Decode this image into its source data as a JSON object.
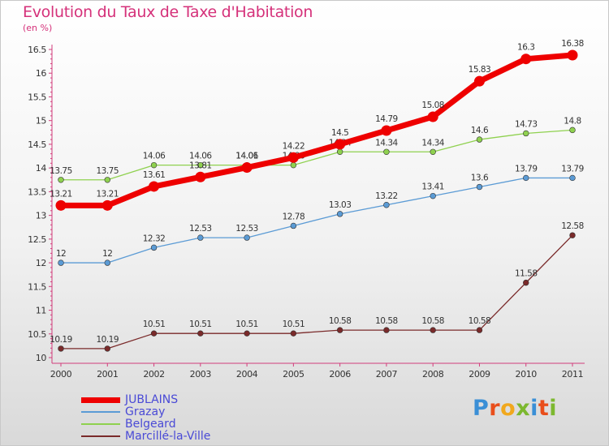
{
  "header": {
    "title": "Evolution du Taux de Taxe d'Habitation",
    "unit": "(en %)"
  },
  "logo": {
    "text": "Proxiti",
    "colors": [
      "#3a8fd6",
      "#e94e1b",
      "#f1a81d",
      "#7cb82f",
      "#3a8fd6",
      "#e94e1b",
      "#7cb82f"
    ]
  },
  "chart_data": {
    "type": "line",
    "x": [
      "2000",
      "2001",
      "2002",
      "2003",
      "2004",
      "2005",
      "2006",
      "2007",
      "2008",
      "2009",
      "2010",
      "2011"
    ],
    "ylim": [
      10,
      16.5
    ],
    "yticks": [
      "10",
      "10.5",
      "11",
      "11.5",
      "12",
      "12.5",
      "13",
      "13.5",
      "14",
      "14.5",
      "15",
      "15.5",
      "16",
      "16.5"
    ],
    "grid": false,
    "legend_position": "bottom-left",
    "series": [
      {
        "name": "Marcillé-la-Ville",
        "color": "#7a2a2a",
        "width": 1.3,
        "marker": 3.4,
        "values": [
          10.19,
          10.19,
          10.51,
          10.51,
          10.51,
          10.51,
          10.58,
          10.58,
          10.58,
          10.58,
          11.58,
          12.58
        ],
        "labels": [
          "10.19",
          "10.19",
          "10.51",
          "10.51",
          "10.51",
          "10.51",
          "10.58",
          "10.58",
          "10.58",
          "10.58",
          "11.58",
          "12.58"
        ]
      },
      {
        "name": "Grazay",
        "color": "#5b9bd5",
        "width": 1.3,
        "marker": 3.4,
        "values": [
          12,
          12,
          12.32,
          12.53,
          12.53,
          12.78,
          13.03,
          13.22,
          13.41,
          13.6,
          13.79,
          13.79
        ],
        "labels": [
          "12",
          "12",
          "12.32",
          "12.53",
          "12.53",
          "12.78",
          "13.03",
          "13.22",
          "13.41",
          "13.6",
          "13.79",
          "13.79"
        ]
      },
      {
        "name": "Belgeard",
        "color": "#8fd14f",
        "width": 1.3,
        "marker": 3.4,
        "values": [
          13.75,
          13.75,
          14.06,
          14.06,
          14.06,
          14.06,
          14.34,
          14.34,
          14.34,
          14.6,
          14.73,
          14.8
        ],
        "labels": [
          "13.75",
          "13.75",
          "14.06",
          "14.06",
          "14.06",
          "14.06",
          "14.34",
          "14.34",
          "14.34",
          "14.6",
          "14.73",
          "14.8"
        ]
      },
      {
        "name": "JUBLAINS",
        "color": "#ee0000",
        "width": 7,
        "marker": 6.5,
        "values": [
          13.21,
          13.21,
          13.61,
          13.81,
          14.01,
          14.22,
          14.5,
          14.79,
          15.08,
          15.83,
          16.3,
          16.38
        ],
        "labels": [
          "13.21",
          "13.21",
          "13.61",
          "13.81",
          "14.01",
          "14.22",
          "14.5",
          "14.79",
          "15.08",
          "15.83",
          "16.3",
          "16.38"
        ]
      }
    ]
  },
  "legend": [
    {
      "label": "JUBLAINS",
      "color": "#ee0000",
      "thickness": 7
    },
    {
      "label": "Grazay",
      "color": "#5b9bd5",
      "thickness": 1.5
    },
    {
      "label": "Belgeard",
      "color": "#8fd14f",
      "thickness": 1.5
    },
    {
      "label": "Marcillé-la-Ville",
      "color": "#7a2a2a",
      "thickness": 1.5
    }
  ]
}
